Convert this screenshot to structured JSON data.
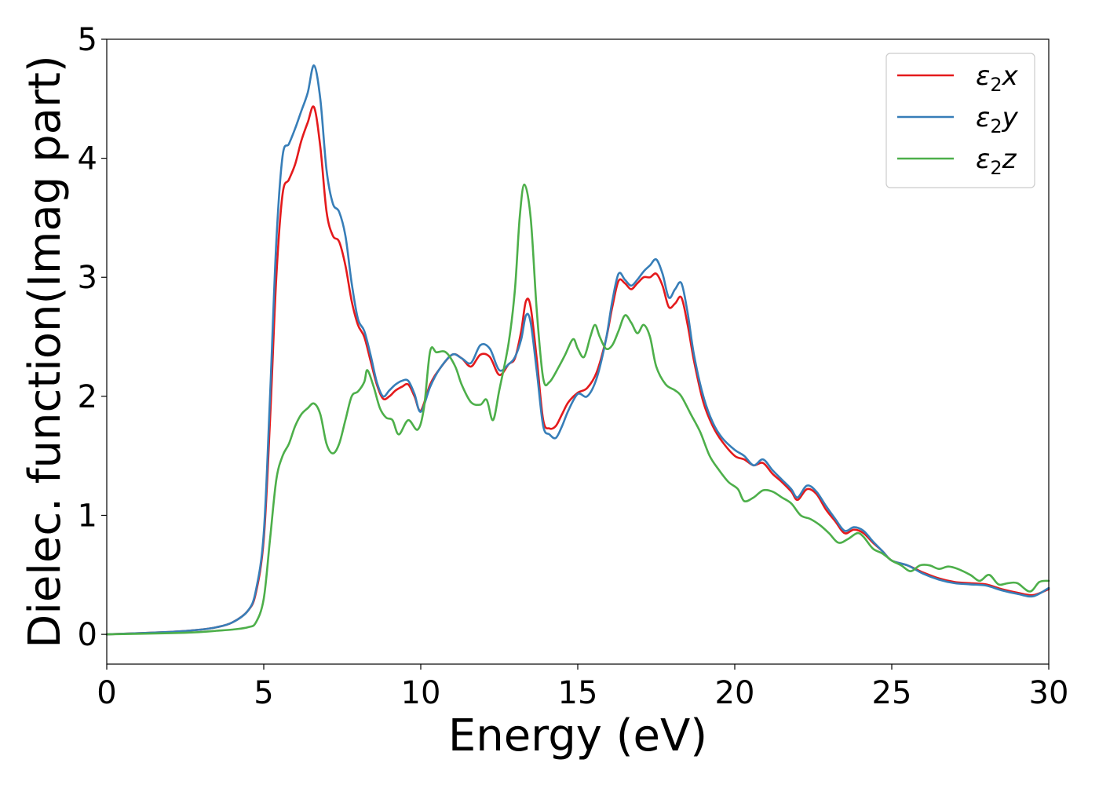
{
  "chart_data": {
    "type": "line",
    "title": "",
    "xlabel": "Energy (eV)",
    "ylabel": "Dielec. function(Imag part)",
    "xlim": [
      0,
      30
    ],
    "ylim": [
      -0.25,
      5.0
    ],
    "xticks": [
      0,
      5,
      10,
      15,
      20,
      25,
      30
    ],
    "yticks": [
      0,
      1,
      2,
      3,
      4,
      5
    ],
    "xtick_labels": [
      "0",
      "5",
      "10",
      "15",
      "20",
      "25",
      "30"
    ],
    "ytick_labels": [
      "0",
      "1",
      "2",
      "3",
      "4",
      "5"
    ],
    "grid": false,
    "legend_position": "top-right",
    "series": [
      {
        "name": "ε₂x",
        "legend_base": "ε",
        "legend_sub": "2",
        "legend_var": "x",
        "color": "#e41a1c",
        "points": [
          [
            0,
            0
          ],
          [
            2,
            0.02
          ],
          [
            3,
            0.04
          ],
          [
            3.5,
            0.06
          ],
          [
            4,
            0.1
          ],
          [
            4.5,
            0.2
          ],
          [
            4.75,
            0.35
          ],
          [
            5,
            0.8
          ],
          [
            5.2,
            1.8
          ],
          [
            5.4,
            3.0
          ],
          [
            5.6,
            3.7
          ],
          [
            5.8,
            3.82
          ],
          [
            6.0,
            3.95
          ],
          [
            6.2,
            4.15
          ],
          [
            6.4,
            4.3
          ],
          [
            6.6,
            4.43
          ],
          [
            6.8,
            4.1
          ],
          [
            7.0,
            3.55
          ],
          [
            7.2,
            3.35
          ],
          [
            7.4,
            3.3
          ],
          [
            7.6,
            3.1
          ],
          [
            7.8,
            2.8
          ],
          [
            8.0,
            2.6
          ],
          [
            8.2,
            2.5
          ],
          [
            8.4,
            2.3
          ],
          [
            8.6,
            2.1
          ],
          [
            8.8,
            1.98
          ],
          [
            9.0,
            2.0
          ],
          [
            9.2,
            2.05
          ],
          [
            9.4,
            2.08
          ],
          [
            9.6,
            2.1
          ],
          [
            9.8,
            2.0
          ],
          [
            10.0,
            1.88
          ],
          [
            10.3,
            2.1
          ],
          [
            10.6,
            2.23
          ],
          [
            11.0,
            2.35
          ],
          [
            11.3,
            2.32
          ],
          [
            11.6,
            2.25
          ],
          [
            11.9,
            2.35
          ],
          [
            12.2,
            2.33
          ],
          [
            12.5,
            2.18
          ],
          [
            12.8,
            2.27
          ],
          [
            13.0,
            2.32
          ],
          [
            13.2,
            2.55
          ],
          [
            13.35,
            2.8
          ],
          [
            13.5,
            2.75
          ],
          [
            13.7,
            2.3
          ],
          [
            13.9,
            1.8
          ],
          [
            14.1,
            1.73
          ],
          [
            14.3,
            1.75
          ],
          [
            14.5,
            1.85
          ],
          [
            14.7,
            1.95
          ],
          [
            15.0,
            2.03
          ],
          [
            15.3,
            2.07
          ],
          [
            15.6,
            2.2
          ],
          [
            15.9,
            2.48
          ],
          [
            16.1,
            2.75
          ],
          [
            16.3,
            2.97
          ],
          [
            16.5,
            2.95
          ],
          [
            16.7,
            2.9
          ],
          [
            16.9,
            2.95
          ],
          [
            17.1,
            3.0
          ],
          [
            17.3,
            3.0
          ],
          [
            17.5,
            3.03
          ],
          [
            17.7,
            2.93
          ],
          [
            17.9,
            2.75
          ],
          [
            18.1,
            2.78
          ],
          [
            18.3,
            2.83
          ],
          [
            18.5,
            2.6
          ],
          [
            18.7,
            2.3
          ],
          [
            19.0,
            1.95
          ],
          [
            19.3,
            1.75
          ],
          [
            19.6,
            1.62
          ],
          [
            20.0,
            1.5
          ],
          [
            20.3,
            1.47
          ],
          [
            20.6,
            1.42
          ],
          [
            20.9,
            1.44
          ],
          [
            21.2,
            1.35
          ],
          [
            21.5,
            1.28
          ],
          [
            21.8,
            1.2
          ],
          [
            22.0,
            1.13
          ],
          [
            22.3,
            1.22
          ],
          [
            22.6,
            1.18
          ],
          [
            22.9,
            1.05
          ],
          [
            23.2,
            0.95
          ],
          [
            23.5,
            0.85
          ],
          [
            23.8,
            0.88
          ],
          [
            24.1,
            0.85
          ],
          [
            24.4,
            0.77
          ],
          [
            24.7,
            0.7
          ],
          [
            25.0,
            0.62
          ],
          [
            25.5,
            0.58
          ],
          [
            26.0,
            0.52
          ],
          [
            26.5,
            0.47
          ],
          [
            27.0,
            0.44
          ],
          [
            27.5,
            0.43
          ],
          [
            28.0,
            0.42
          ],
          [
            28.5,
            0.38
          ],
          [
            29.0,
            0.35
          ],
          [
            29.5,
            0.33
          ],
          [
            30.0,
            0.38
          ]
        ]
      },
      {
        "name": "ε₂y",
        "legend_base": "ε",
        "legend_sub": "2",
        "legend_var": "y",
        "color": "#377eb8",
        "points": [
          [
            0,
            0
          ],
          [
            2,
            0.02
          ],
          [
            3,
            0.04
          ],
          [
            3.5,
            0.06
          ],
          [
            4,
            0.1
          ],
          [
            4.5,
            0.2
          ],
          [
            4.75,
            0.37
          ],
          [
            5,
            0.85
          ],
          [
            5.2,
            2.0
          ],
          [
            5.4,
            3.3
          ],
          [
            5.6,
            4.02
          ],
          [
            5.8,
            4.12
          ],
          [
            6.0,
            4.25
          ],
          [
            6.2,
            4.4
          ],
          [
            6.4,
            4.55
          ],
          [
            6.6,
            4.78
          ],
          [
            6.8,
            4.5
          ],
          [
            7.0,
            3.9
          ],
          [
            7.2,
            3.62
          ],
          [
            7.4,
            3.55
          ],
          [
            7.6,
            3.35
          ],
          [
            7.8,
            2.95
          ],
          [
            8.0,
            2.65
          ],
          [
            8.2,
            2.55
          ],
          [
            8.4,
            2.35
          ],
          [
            8.6,
            2.12
          ],
          [
            8.8,
            2.0
          ],
          [
            9.0,
            2.05
          ],
          [
            9.2,
            2.1
          ],
          [
            9.4,
            2.13
          ],
          [
            9.6,
            2.13
          ],
          [
            9.8,
            2.02
          ],
          [
            10.0,
            1.87
          ],
          [
            10.3,
            2.08
          ],
          [
            10.6,
            2.23
          ],
          [
            11.0,
            2.35
          ],
          [
            11.3,
            2.32
          ],
          [
            11.6,
            2.28
          ],
          [
            11.9,
            2.43
          ],
          [
            12.2,
            2.4
          ],
          [
            12.5,
            2.22
          ],
          [
            12.8,
            2.27
          ],
          [
            13.0,
            2.33
          ],
          [
            13.2,
            2.48
          ],
          [
            13.35,
            2.68
          ],
          [
            13.5,
            2.62
          ],
          [
            13.7,
            2.2
          ],
          [
            13.9,
            1.75
          ],
          [
            14.1,
            1.68
          ],
          [
            14.3,
            1.65
          ],
          [
            14.5,
            1.75
          ],
          [
            14.7,
            1.88
          ],
          [
            15.0,
            2.02
          ],
          [
            15.3,
            2.0
          ],
          [
            15.6,
            2.15
          ],
          [
            15.9,
            2.48
          ],
          [
            16.1,
            2.8
          ],
          [
            16.3,
            3.03
          ],
          [
            16.5,
            2.98
          ],
          [
            16.7,
            2.93
          ],
          [
            16.9,
            2.98
          ],
          [
            17.1,
            3.05
          ],
          [
            17.3,
            3.1
          ],
          [
            17.5,
            3.15
          ],
          [
            17.7,
            3.03
          ],
          [
            17.9,
            2.83
          ],
          [
            18.1,
            2.9
          ],
          [
            18.3,
            2.95
          ],
          [
            18.5,
            2.7
          ],
          [
            18.7,
            2.35
          ],
          [
            19.0,
            2.0
          ],
          [
            19.3,
            1.78
          ],
          [
            19.6,
            1.65
          ],
          [
            20.0,
            1.55
          ],
          [
            20.3,
            1.5
          ],
          [
            20.6,
            1.42
          ],
          [
            20.9,
            1.47
          ],
          [
            21.2,
            1.38
          ],
          [
            21.5,
            1.3
          ],
          [
            21.8,
            1.22
          ],
          [
            22.0,
            1.15
          ],
          [
            22.3,
            1.25
          ],
          [
            22.6,
            1.2
          ],
          [
            22.9,
            1.08
          ],
          [
            23.2,
            0.97
          ],
          [
            23.5,
            0.87
          ],
          [
            23.8,
            0.9
          ],
          [
            24.1,
            0.87
          ],
          [
            24.4,
            0.78
          ],
          [
            24.7,
            0.7
          ],
          [
            25.0,
            0.62
          ],
          [
            25.5,
            0.58
          ],
          [
            26.0,
            0.51
          ],
          [
            26.5,
            0.46
          ],
          [
            27.0,
            0.43
          ],
          [
            27.5,
            0.42
          ],
          [
            28.0,
            0.41
          ],
          [
            28.5,
            0.37
          ],
          [
            29.0,
            0.34
          ],
          [
            29.5,
            0.32
          ],
          [
            30.0,
            0.39
          ]
        ]
      },
      {
        "name": "ε₂z",
        "legend_base": "ε",
        "legend_sub": "2",
        "legend_var": "z",
        "color": "#4daf4a",
        "points": [
          [
            0,
            0
          ],
          [
            2,
            0.01
          ],
          [
            3,
            0.02
          ],
          [
            3.5,
            0.03
          ],
          [
            4,
            0.04
          ],
          [
            4.5,
            0.06
          ],
          [
            4.75,
            0.1
          ],
          [
            5.0,
            0.3
          ],
          [
            5.2,
            0.8
          ],
          [
            5.4,
            1.3
          ],
          [
            5.6,
            1.5
          ],
          [
            5.8,
            1.6
          ],
          [
            6.0,
            1.75
          ],
          [
            6.2,
            1.85
          ],
          [
            6.4,
            1.9
          ],
          [
            6.6,
            1.94
          ],
          [
            6.8,
            1.85
          ],
          [
            7.0,
            1.6
          ],
          [
            7.2,
            1.52
          ],
          [
            7.4,
            1.6
          ],
          [
            7.6,
            1.8
          ],
          [
            7.8,
            2.0
          ],
          [
            8.0,
            2.04
          ],
          [
            8.2,
            2.12
          ],
          [
            8.3,
            2.22
          ],
          [
            8.5,
            2.08
          ],
          [
            8.7,
            1.9
          ],
          [
            8.9,
            1.82
          ],
          [
            9.1,
            1.8
          ],
          [
            9.3,
            1.68
          ],
          [
            9.6,
            1.8
          ],
          [
            9.9,
            1.72
          ],
          [
            10.1,
            1.9
          ],
          [
            10.3,
            2.38
          ],
          [
            10.5,
            2.37
          ],
          [
            10.8,
            2.37
          ],
          [
            11.1,
            2.25
          ],
          [
            11.3,
            2.1
          ],
          [
            11.6,
            1.95
          ],
          [
            11.9,
            1.93
          ],
          [
            12.1,
            1.97
          ],
          [
            12.3,
            1.8
          ],
          [
            12.5,
            2.05
          ],
          [
            12.8,
            2.45
          ],
          [
            13.0,
            2.9
          ],
          [
            13.15,
            3.5
          ],
          [
            13.3,
            3.78
          ],
          [
            13.5,
            3.5
          ],
          [
            13.7,
            2.7
          ],
          [
            13.9,
            2.15
          ],
          [
            14.1,
            2.12
          ],
          [
            14.4,
            2.25
          ],
          [
            14.6,
            2.35
          ],
          [
            14.85,
            2.48
          ],
          [
            15.0,
            2.4
          ],
          [
            15.2,
            2.33
          ],
          [
            15.4,
            2.5
          ],
          [
            15.55,
            2.6
          ],
          [
            15.7,
            2.5
          ],
          [
            15.9,
            2.4
          ],
          [
            16.1,
            2.43
          ],
          [
            16.3,
            2.55
          ],
          [
            16.5,
            2.68
          ],
          [
            16.7,
            2.62
          ],
          [
            16.9,
            2.53
          ],
          [
            17.1,
            2.6
          ],
          [
            17.3,
            2.5
          ],
          [
            17.5,
            2.25
          ],
          [
            17.8,
            2.1
          ],
          [
            18.1,
            2.05
          ],
          [
            18.3,
            2.0
          ],
          [
            18.6,
            1.85
          ],
          [
            18.9,
            1.7
          ],
          [
            19.2,
            1.5
          ],
          [
            19.5,
            1.38
          ],
          [
            19.8,
            1.28
          ],
          [
            20.1,
            1.22
          ],
          [
            20.3,
            1.12
          ],
          [
            20.6,
            1.15
          ],
          [
            20.9,
            1.21
          ],
          [
            21.2,
            1.2
          ],
          [
            21.5,
            1.15
          ],
          [
            21.8,
            1.1
          ],
          [
            22.1,
            1.0
          ],
          [
            22.4,
            0.97
          ],
          [
            22.7,
            0.92
          ],
          [
            23.0,
            0.85
          ],
          [
            23.3,
            0.77
          ],
          [
            23.6,
            0.8
          ],
          [
            23.9,
            0.85
          ],
          [
            24.1,
            0.82
          ],
          [
            24.4,
            0.72
          ],
          [
            24.7,
            0.68
          ],
          [
            25.0,
            0.62
          ],
          [
            25.3,
            0.58
          ],
          [
            25.6,
            0.53
          ],
          [
            25.9,
            0.58
          ],
          [
            26.2,
            0.58
          ],
          [
            26.5,
            0.55
          ],
          [
            26.8,
            0.57
          ],
          [
            27.1,
            0.55
          ],
          [
            27.5,
            0.5
          ],
          [
            27.8,
            0.45
          ],
          [
            28.1,
            0.5
          ],
          [
            28.4,
            0.42
          ],
          [
            28.7,
            0.43
          ],
          [
            29.0,
            0.43
          ],
          [
            29.4,
            0.36
          ],
          [
            29.7,
            0.44
          ],
          [
            30.0,
            0.45
          ]
        ]
      }
    ]
  }
}
